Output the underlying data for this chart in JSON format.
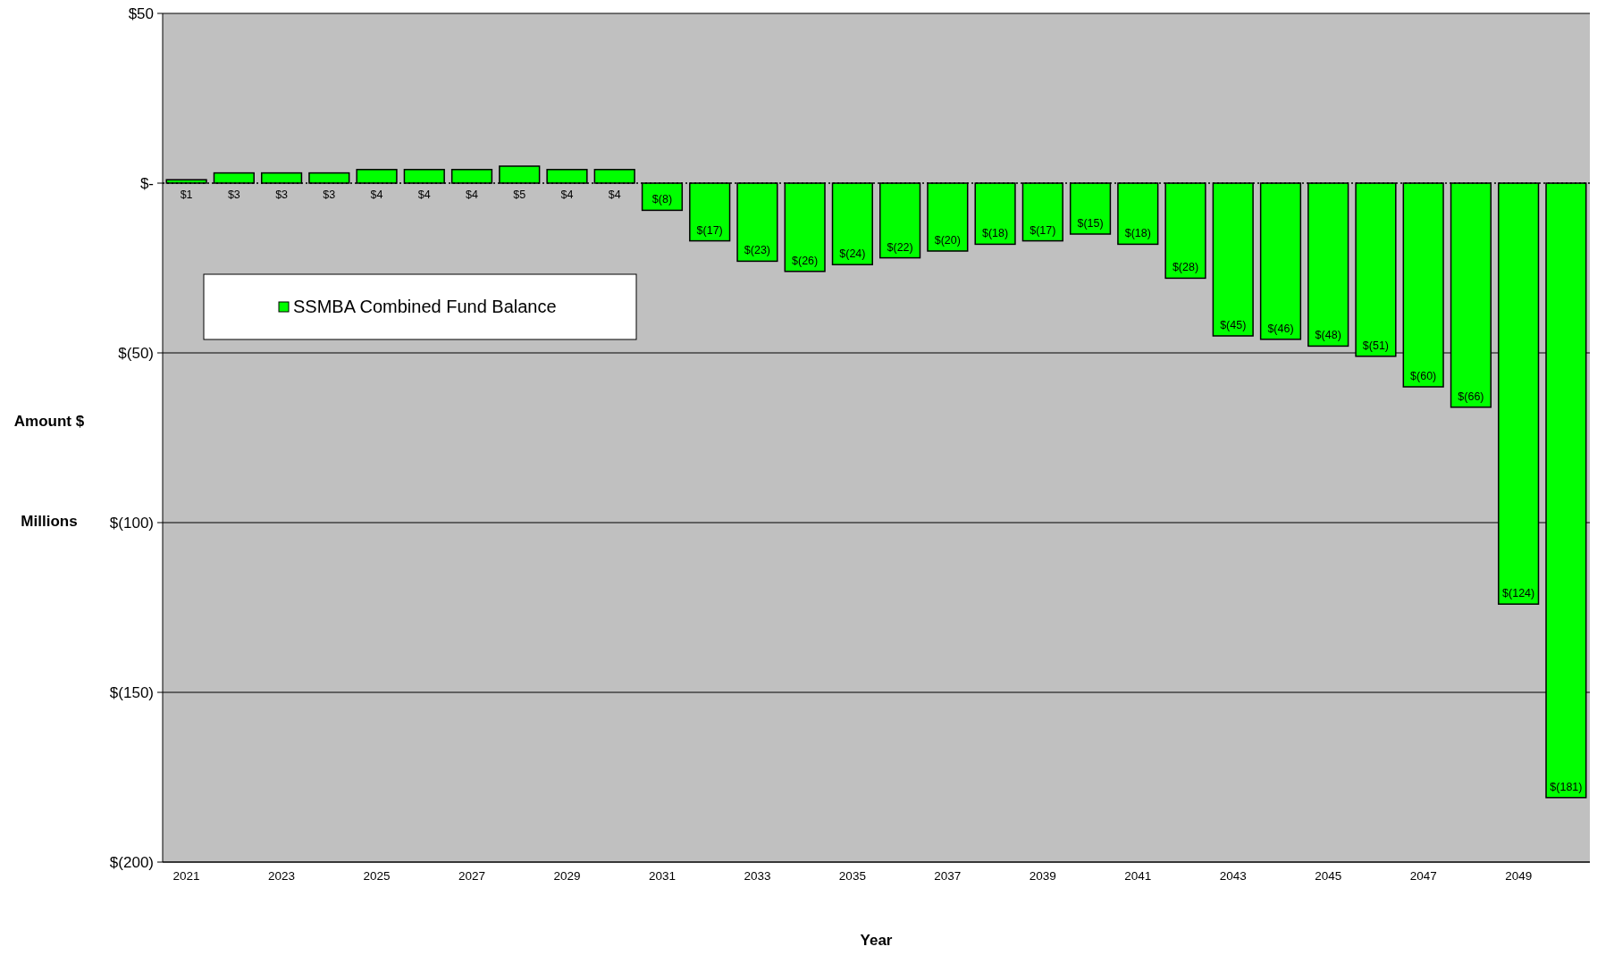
{
  "chart_data": {
    "type": "bar",
    "categories": [
      "2021",
      null,
      "2023",
      null,
      "2025",
      null,
      "2027",
      null,
      "2029",
      null,
      "2031",
      null,
      "2033",
      null,
      "2035",
      null,
      "2037",
      null,
      "2039",
      null,
      "2041",
      null,
      "2043",
      null,
      "2045",
      null,
      "2047",
      null,
      "2049",
      null
    ],
    "series": [
      {
        "name": "SSMBA Combined Fund Balance",
        "color": "#00ff00",
        "values": [
          1,
          3,
          3,
          3,
          4,
          4,
          4,
          5,
          4,
          4,
          -8,
          -17,
          -23,
          -26,
          -24,
          -22,
          -20,
          -18,
          -17,
          -15,
          -18,
          -28,
          -45,
          -46,
          -48,
          -51,
          -60,
          -66,
          -124,
          -181
        ],
        "value_labels": [
          "$1",
          "$3",
          "$3",
          "$3",
          "$4",
          "$4",
          "$4",
          "$5",
          "$4",
          "$4",
          "$(8)",
          "$(17)",
          "$(23)",
          "$(26)",
          "$(24)",
          "$(22)",
          "$(20)",
          "$(18)",
          "$(17)",
          "$(15)",
          "$(18)",
          "$(28)",
          "$(45)",
          "$(46)",
          "$(48)",
          "$(51)",
          "$(60)",
          "$(66)",
          "$(124)",
          "$(181)"
        ]
      }
    ],
    "xlabel": "Year",
    "ylabel": "Amount $\nMillions",
    "ylim": [
      -200,
      50
    ],
    "yticks": [
      {
        "value": 50,
        "label": "$50"
      },
      {
        "value": 0,
        "label": "$-"
      },
      {
        "value": -50,
        "label": "$(50)"
      },
      {
        "value": -100,
        "label": "$(100)"
      },
      {
        "value": -150,
        "label": "$(150)"
      },
      {
        "value": -200,
        "label": "$(200)"
      }
    ],
    "ref_lines": [
      {
        "axis": "y",
        "value": 0,
        "line_style": "dotted",
        "color": "#000000"
      }
    ],
    "grid": "y",
    "legend": "top left"
  }
}
